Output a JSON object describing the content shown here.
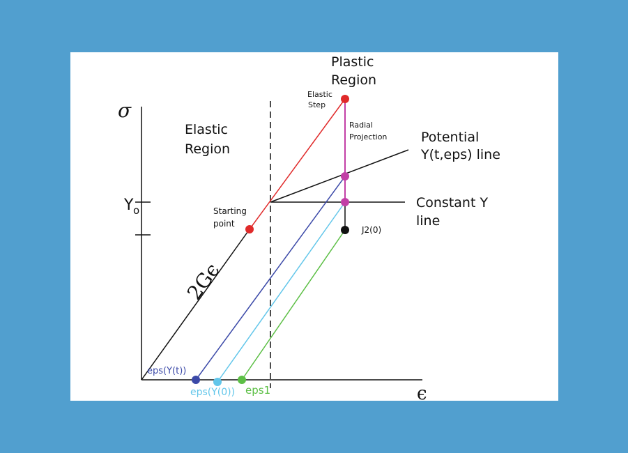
{
  "diagram": {
    "axis_y_symbol": "σ",
    "axis_x_symbol": "ϵ",
    "y0_label": "Y",
    "y0_subscript": "o",
    "slope_label": "2Gϵ",
    "elastic_region": [
      "Elastic",
      "Region"
    ],
    "plastic_region": [
      "Plastic",
      "Region"
    ],
    "elastic_step": [
      "Elastic",
      "Step"
    ],
    "radial_projection": [
      "Radial",
      "Projection"
    ],
    "potential_line": [
      "Potential",
      "Y(t,eps) line"
    ],
    "constant_line": [
      "Constant Y",
      "line"
    ],
    "starting_point": [
      "Starting",
      "point"
    ],
    "j2_label": "J2(0)",
    "eps_yt_label": "eps(Y(t))",
    "eps_y0_label": "eps(Y(0))",
    "eps1_label": "eps1"
  },
  "colors": {
    "background": "#519fcf",
    "red": "#e02a2a",
    "blue": "#3b49a8",
    "light_blue": "#62c6ea",
    "green": "#5cbf45",
    "magenta": "#c23fa6",
    "black": "#111111"
  }
}
